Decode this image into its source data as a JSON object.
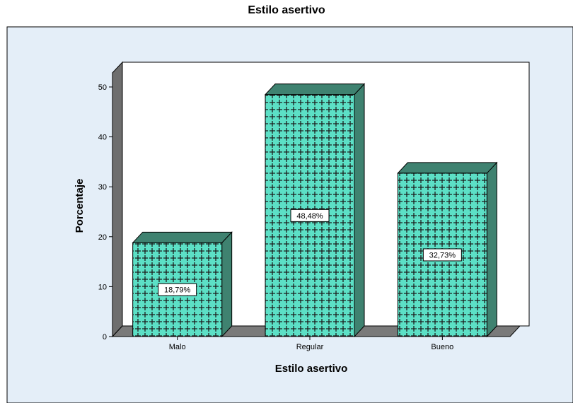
{
  "chart_data": {
    "type": "bar",
    "title": "Estilo asertivo",
    "xlabel": "Estilo asertivo",
    "ylabel": "Porcentaje",
    "categories": [
      "Malo",
      "Regular",
      "Bueno"
    ],
    "values": [
      18.79,
      48.48,
      32.73
    ],
    "data_labels": [
      "18,79%",
      "48,48%",
      "32,73%"
    ],
    "ylim": [
      0,
      50
    ],
    "yticks": [
      "0",
      "10",
      "20",
      "30",
      "40",
      "50"
    ],
    "style": "3d-bars",
    "grid": false,
    "legend": "none"
  },
  "colors": {
    "background": "#e4eef8",
    "plot_area": "#ffffff",
    "bar_face": "#5ce0c6",
    "bar_pattern": "#1d1d1d",
    "bar_side": "#3f8270",
    "floor": "#7a7a7a"
  }
}
